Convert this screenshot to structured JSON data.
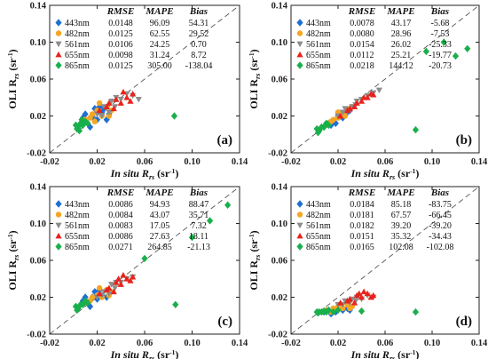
{
  "chart_data": {
    "type": "scatter",
    "panels": [
      {
        "label": "(a)",
        "xlabel_prefix": "In situ R",
        "xlabel_sub": "rs",
        "xlabel_unit": " (sr",
        "ylabel_prefix": "OLI R",
        "ylabel_sub": "rs",
        "ylabel_unit": " (sr",
        "xlim": [
          -0.02,
          0.14
        ],
        "ylim": [
          -0.02,
          0.14
        ],
        "xticks": [
          "-0.02",
          "0.02",
          "0.06",
          "0.10",
          "0.14"
        ],
        "yticks": [
          "-0.02",
          "0.02",
          "0.06",
          "0.10",
          "0.14"
        ],
        "table_header": [
          "RMSE",
          "MAPE",
          "Bias"
        ],
        "rows": [
          {
            "band": "443nm",
            "rmse": "0.0148",
            "mape": "96.09",
            "bias": "54.31"
          },
          {
            "band": "482nm",
            "rmse": "0.0125",
            "mape": "62.55",
            "bias": "29.52"
          },
          {
            "band": "561nm",
            "rmse": "0.0106",
            "mape": "24.25",
            "bias": "0.70"
          },
          {
            "band": "655nm",
            "rmse": "0.0098",
            "mape": "31.24",
            "bias": "8.72"
          },
          {
            "band": "865nm",
            "rmse": "0.0125",
            "mape": "305.00",
            "bias": "-138.04"
          }
        ]
      },
      {
        "label": "(b)",
        "xlabel_prefix": "In situ R",
        "xlabel_sub": "rs",
        "xlabel_unit": " (sr",
        "ylabel_prefix": "OLI R",
        "ylabel_sub": "rs",
        "ylabel_unit": " (sr",
        "xlim": [
          -0.02,
          0.14
        ],
        "ylim": [
          -0.02,
          0.14
        ],
        "xticks": [
          "-0.02",
          "0.02",
          "0.06",
          "0.10",
          "0.14"
        ],
        "yticks": [
          "-0.02",
          "0.02",
          "0.06",
          "0.10",
          "0.14"
        ],
        "table_header": [
          "RMSE",
          "MAPE",
          "Bias"
        ],
        "rows": [
          {
            "band": "443nm",
            "rmse": "0.0078",
            "mape": "43.17",
            "bias": "-5.68"
          },
          {
            "band": "482nm",
            "rmse": "0.0080",
            "mape": "28.96",
            "bias": "-7.53"
          },
          {
            "band": "561nm",
            "rmse": "0.0154",
            "mape": "26.02",
            "bias": "-25.33"
          },
          {
            "band": "655nm",
            "rmse": "0.0112",
            "mape": "25.21",
            "bias": "-19.77"
          },
          {
            "band": "865nm",
            "rmse": "0.0218",
            "mape": "144.12",
            "bias": "-20.73"
          }
        ]
      },
      {
        "label": "(c)",
        "xlabel_prefix": "In situ R",
        "xlabel_sub": "rs",
        "xlabel_unit": " (sr",
        "ylabel_prefix": "OLI R",
        "ylabel_sub": "rs",
        "ylabel_unit": " (sr",
        "xlim": [
          -0.02,
          0.14
        ],
        "ylim": [
          -0.02,
          0.14
        ],
        "xticks": [
          "-0.02",
          "0.02",
          "0.06",
          "0.10",
          "0.14"
        ],
        "yticks": [
          "-0.02",
          "0.02",
          "0.06",
          "0.10",
          "0.14"
        ],
        "table_header": [
          "RMSE",
          "MAPE",
          "Bias"
        ],
        "rows": [
          {
            "band": "443nm",
            "rmse": "0.0086",
            "mape": "94.93",
            "bias": "88.47"
          },
          {
            "band": "482nm",
            "rmse": "0.0084",
            "mape": "43.07",
            "bias": "35.71"
          },
          {
            "band": "561nm",
            "rmse": "0.0083",
            "mape": "17.05",
            "bias": "7.32"
          },
          {
            "band": "655nm",
            "rmse": "0.0086",
            "mape": "27.63",
            "bias": "18.11"
          },
          {
            "band": "865nm",
            "rmse": "0.0271",
            "mape": "264.85",
            "bias": "-21.13"
          }
        ]
      },
      {
        "label": "(d)",
        "xlabel_prefix": "In situ R",
        "xlabel_sub": "rs",
        "xlabel_unit": " (sr",
        "ylabel_prefix": "OLI R",
        "ylabel_sub": "rs",
        "ylabel_unit": " (sr",
        "xlim": [
          -0.02,
          0.14
        ],
        "ylim": [
          -0.02,
          0.14
        ],
        "xticks": [
          "-0.02",
          "0.02",
          "0.06",
          "0.10",
          "0.14"
        ],
        "yticks": [
          "-0.02",
          "0.02",
          "0.06",
          "0.10",
          "0.14"
        ],
        "table_header": [
          "RMSE",
          "MAPE",
          "Bias"
        ],
        "rows": [
          {
            "band": "443nm",
            "rmse": "0.0184",
            "mape": "85.18",
            "bias": "-83.75"
          },
          {
            "band": "482nm",
            "rmse": "0.0181",
            "mape": "67.57",
            "bias": "-66.45"
          },
          {
            "band": "561nm",
            "rmse": "0.0182",
            "mape": "39.20",
            "bias": "-39.20"
          },
          {
            "band": "655nm",
            "rmse": "0.0151",
            "mape": "35.32",
            "bias": "-34.43"
          },
          {
            "band": "865nm",
            "rmse": "0.0165",
            "mape": "102.08",
            "bias": "-102.08"
          }
        ]
      }
    ],
    "series": [
      {
        "name": "443nm",
        "color": "#1f6fd0",
        "marker": "diamond"
      },
      {
        "name": "482nm",
        "color": "#f5a623",
        "marker": "circle"
      },
      {
        "name": "561nm",
        "color": "#8c8c8c",
        "marker": "triangle-down"
      },
      {
        "name": "655nm",
        "color": "#e8231c",
        "marker": "triangle-up"
      },
      {
        "name": "865nm",
        "color": "#19b04b",
        "marker": "diamond"
      }
    ],
    "reference_line": "1:1 dashed",
    "legend_placement": "top-left",
    "grid": false,
    "sample_points": {
      "a": {
        "443nm": [
          [
            0.008,
            0.018
          ],
          [
            0.012,
            0.012
          ],
          [
            0.016,
            0.02
          ],
          [
            0.02,
            0.016
          ],
          [
            0.024,
            0.024
          ],
          [
            0.018,
            0.028
          ],
          [
            0.03,
            0.022
          ],
          [
            0.014,
            0.008
          ],
          [
            0.022,
            0.03
          ],
          [
            0.028,
            0.016
          ],
          [
            0.026,
            0.028
          ],
          [
            0.01,
            0.022
          ]
        ],
        "482nm": [
          [
            0.01,
            0.016
          ],
          [
            0.016,
            0.022
          ],
          [
            0.02,
            0.026
          ],
          [
            0.024,
            0.02
          ],
          [
            0.018,
            0.014
          ],
          [
            0.028,
            0.03
          ],
          [
            0.032,
            0.026
          ],
          [
            0.014,
            0.018
          ],
          [
            0.022,
            0.034
          ],
          [
            0.03,
            0.02
          ]
        ],
        "561nm": [
          [
            0.02,
            0.022
          ],
          [
            0.026,
            0.03
          ],
          [
            0.032,
            0.036
          ],
          [
            0.036,
            0.04
          ],
          [
            0.04,
            0.038
          ],
          [
            0.045,
            0.044
          ],
          [
            0.03,
            0.024
          ],
          [
            0.024,
            0.02
          ],
          [
            0.05,
            0.042
          ],
          [
            0.055,
            0.038
          ],
          [
            0.035,
            0.03
          ]
        ],
        "655nm": [
          [
            0.022,
            0.026
          ],
          [
            0.03,
            0.034
          ],
          [
            0.036,
            0.038
          ],
          [
            0.04,
            0.034
          ],
          [
            0.045,
            0.04
          ],
          [
            0.05,
            0.044
          ],
          [
            0.028,
            0.03
          ],
          [
            0.034,
            0.028
          ],
          [
            0.042,
            0.046
          ],
          [
            0.048,
            0.036
          ]
        ],
        "865nm": [
          [
            0.002,
            0.01
          ],
          [
            0.004,
            0.008
          ],
          [
            0.006,
            0.012
          ],
          [
            0.008,
            0.01
          ],
          [
            0.01,
            0.014
          ],
          [
            0.003,
            0.006
          ],
          [
            0.012,
            0.012
          ],
          [
            0.007,
            0.016
          ],
          [
            0.005,
            0.004
          ],
          [
            0.085,
            0.02
          ]
        ]
      },
      "b": {
        "443nm": [
          [
            0.008,
            0.008
          ],
          [
            0.012,
            0.012
          ],
          [
            0.016,
            0.014
          ],
          [
            0.02,
            0.02
          ],
          [
            0.024,
            0.018
          ],
          [
            0.018,
            0.012
          ],
          [
            0.028,
            0.024
          ],
          [
            0.014,
            0.01
          ],
          [
            0.022,
            0.02
          ],
          [
            0.03,
            0.026
          ]
        ],
        "482nm": [
          [
            0.01,
            0.01
          ],
          [
            0.016,
            0.016
          ],
          [
            0.02,
            0.018
          ],
          [
            0.024,
            0.022
          ],
          [
            0.028,
            0.026
          ],
          [
            0.032,
            0.03
          ],
          [
            0.014,
            0.014
          ],
          [
            0.02,
            0.024
          ],
          [
            0.026,
            0.02
          ],
          [
            0.03,
            0.028
          ]
        ],
        "561nm": [
          [
            0.02,
            0.02
          ],
          [
            0.026,
            0.028
          ],
          [
            0.032,
            0.03
          ],
          [
            0.036,
            0.036
          ],
          [
            0.04,
            0.038
          ],
          [
            0.045,
            0.042
          ],
          [
            0.05,
            0.045
          ],
          [
            0.03,
            0.026
          ],
          [
            0.024,
            0.024
          ],
          [
            0.055,
            0.048
          ],
          [
            0.035,
            0.032
          ]
        ],
        "655nm": [
          [
            0.022,
            0.02
          ],
          [
            0.03,
            0.028
          ],
          [
            0.036,
            0.034
          ],
          [
            0.04,
            0.036
          ],
          [
            0.045,
            0.04
          ],
          [
            0.05,
            0.043
          ],
          [
            0.028,
            0.026
          ],
          [
            0.034,
            0.03
          ],
          [
            0.042,
            0.04
          ],
          [
            0.048,
            0.044
          ]
        ],
        "865nm": [
          [
            0.002,
            0.006
          ],
          [
            0.004,
            0.004
          ],
          [
            0.006,
            0.008
          ],
          [
            0.008,
            0.008
          ],
          [
            0.01,
            0.012
          ],
          [
            0.003,
            0.002
          ],
          [
            0.012,
            0.01
          ],
          [
            0.086,
            0.005
          ],
          [
            0.095,
            0.09
          ],
          [
            0.11,
            0.1
          ],
          [
            0.12,
            0.085
          ],
          [
            0.13,
            0.093
          ]
        ]
      },
      "c": {
        "443nm": [
          [
            0.008,
            0.016
          ],
          [
            0.012,
            0.014
          ],
          [
            0.016,
            0.02
          ],
          [
            0.02,
            0.018
          ],
          [
            0.024,
            0.022
          ],
          [
            0.018,
            0.026
          ],
          [
            0.028,
            0.02
          ],
          [
            0.014,
            0.01
          ],
          [
            0.022,
            0.028
          ],
          [
            0.01,
            0.02
          ]
        ],
        "482nm": [
          [
            0.01,
            0.014
          ],
          [
            0.016,
            0.02
          ],
          [
            0.02,
            0.022
          ],
          [
            0.024,
            0.02
          ],
          [
            0.028,
            0.028
          ],
          [
            0.032,
            0.026
          ],
          [
            0.014,
            0.016
          ],
          [
            0.022,
            0.03
          ],
          [
            0.03,
            0.022
          ]
        ],
        "561nm": [
          [
            0.02,
            0.02
          ],
          [
            0.026,
            0.026
          ],
          [
            0.032,
            0.034
          ],
          [
            0.036,
            0.036
          ],
          [
            0.04,
            0.036
          ],
          [
            0.045,
            0.04
          ],
          [
            0.03,
            0.024
          ],
          [
            0.024,
            0.022
          ],
          [
            0.05,
            0.042
          ],
          [
            0.035,
            0.03
          ]
        ],
        "655nm": [
          [
            0.022,
            0.024
          ],
          [
            0.03,
            0.03
          ],
          [
            0.036,
            0.036
          ],
          [
            0.04,
            0.034
          ],
          [
            0.045,
            0.04
          ],
          [
            0.05,
            0.042
          ],
          [
            0.028,
            0.028
          ],
          [
            0.034,
            0.026
          ],
          [
            0.042,
            0.044
          ],
          [
            0.048,
            0.038
          ],
          [
            0.038,
            0.04
          ]
        ],
        "865nm": [
          [
            0.002,
            0.01
          ],
          [
            0.004,
            0.008
          ],
          [
            0.006,
            0.012
          ],
          [
            0.008,
            0.012
          ],
          [
            0.01,
            0.016
          ],
          [
            0.003,
            0.006
          ],
          [
            0.012,
            0.014
          ],
          [
            0.086,
            0.012
          ],
          [
            0.1,
            0.085
          ],
          [
            0.115,
            0.103
          ],
          [
            0.13,
            0.12
          ],
          [
            0.06,
            0.062
          ]
        ]
      },
      "d": {
        "443nm": [
          [
            0.008,
            0.004
          ],
          [
            0.012,
            0.006
          ],
          [
            0.016,
            0.006
          ],
          [
            0.02,
            0.008
          ],
          [
            0.024,
            0.006
          ],
          [
            0.018,
            0.004
          ],
          [
            0.028,
            0.008
          ],
          [
            0.014,
            0.002
          ],
          [
            0.022,
            0.01
          ],
          [
            0.03,
            0.006
          ]
        ],
        "482nm": [
          [
            0.01,
            0.006
          ],
          [
            0.016,
            0.008
          ],
          [
            0.02,
            0.01
          ],
          [
            0.024,
            0.008
          ],
          [
            0.028,
            0.012
          ],
          [
            0.032,
            0.01
          ],
          [
            0.014,
            0.004
          ],
          [
            0.022,
            0.012
          ],
          [
            0.03,
            0.008
          ]
        ],
        "561nm": [
          [
            0.02,
            0.012
          ],
          [
            0.026,
            0.016
          ],
          [
            0.032,
            0.018
          ],
          [
            0.036,
            0.02
          ],
          [
            0.04,
            0.018
          ],
          [
            0.045,
            0.022
          ],
          [
            0.03,
            0.014
          ],
          [
            0.024,
            0.012
          ],
          [
            0.05,
            0.02
          ],
          [
            0.035,
            0.016
          ]
        ],
        "655nm": [
          [
            0.022,
            0.014
          ],
          [
            0.03,
            0.018
          ],
          [
            0.036,
            0.022
          ],
          [
            0.04,
            0.02
          ],
          [
            0.045,
            0.024
          ],
          [
            0.05,
            0.022
          ],
          [
            0.028,
            0.016
          ],
          [
            0.034,
            0.014
          ],
          [
            0.042,
            0.026
          ],
          [
            0.048,
            0.02
          ],
          [
            0.038,
            0.024
          ]
        ],
        "865nm": [
          [
            0.002,
            0.004
          ],
          [
            0.004,
            0.004
          ],
          [
            0.006,
            0.004
          ],
          [
            0.008,
            0.005
          ],
          [
            0.01,
            0.004
          ],
          [
            0.003,
            0.003
          ],
          [
            0.012,
            0.006
          ],
          [
            0.016,
            0.004
          ],
          [
            0.086,
            0.004
          ],
          [
            0.04,
            0.005
          ],
          [
            0.02,
            0.006
          ]
        ]
      }
    }
  }
}
